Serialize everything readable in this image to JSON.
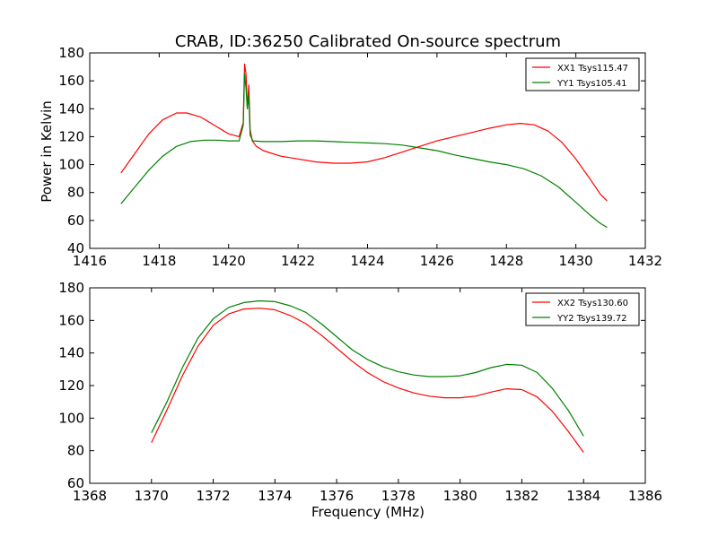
{
  "figure": {
    "title": "CRAB, ID:36250 Calibrated On-source spectrum",
    "ylabel": "Power in Kelvin",
    "xlabel": "Frequency (MHz)"
  },
  "chart_data": [
    {
      "type": "line",
      "title": "CRAB, ID:36250 Calibrated On-source spectrum",
      "xlabel": "",
      "ylabel": "Power in Kelvin",
      "xlim": [
        1416,
        1432
      ],
      "ylim": [
        40,
        180
      ],
      "xticks": [
        1416,
        1418,
        1420,
        1422,
        1424,
        1426,
        1428,
        1430,
        1432
      ],
      "yticks": [
        40,
        60,
        80,
        100,
        120,
        140,
        160,
        180
      ],
      "grid": false,
      "legend": "top-right",
      "series": [
        {
          "name": "XX1 Tsys115.47",
          "color": "#ff0000",
          "x": [
            1416.9,
            1417.3,
            1417.7,
            1418.1,
            1418.5,
            1418.8,
            1419.2,
            1419.6,
            1420.0,
            1420.3,
            1420.42,
            1420.46,
            1420.5,
            1420.54,
            1420.58,
            1420.62,
            1420.68,
            1420.8,
            1421.0,
            1421.5,
            1422.0,
            1422.5,
            1423.0,
            1423.5,
            1424.0,
            1424.5,
            1425.0,
            1425.5,
            1426.0,
            1426.5,
            1427.0,
            1427.5,
            1428.0,
            1428.4,
            1428.8,
            1429.2,
            1429.6,
            1430.0,
            1430.4,
            1430.7,
            1430.9
          ],
          "y": [
            94,
            108,
            122,
            132,
            137,
            137,
            134,
            128,
            122,
            120,
            130,
            172,
            165,
            140,
            157,
            125,
            117,
            113,
            110,
            106,
            104,
            102,
            101,
            101,
            102,
            105,
            109,
            113,
            117,
            120,
            123,
            126,
            128.5,
            129.5,
            128.5,
            124,
            116,
            104,
            90,
            79,
            74
          ]
        },
        {
          "name": "YY1 Tsys105.41",
          "color": "#008000",
          "x": [
            1416.9,
            1417.3,
            1417.7,
            1418.1,
            1418.5,
            1418.9,
            1419.3,
            1419.7,
            1420.0,
            1420.3,
            1420.42,
            1420.46,
            1420.5,
            1420.54,
            1420.58,
            1420.62,
            1420.7,
            1421.0,
            1421.5,
            1422.0,
            1422.5,
            1423.0,
            1423.5,
            1424.0,
            1424.5,
            1425.0,
            1425.5,
            1426.0,
            1426.5,
            1427.0,
            1427.5,
            1428.0,
            1428.5,
            1429.0,
            1429.5,
            1430.0,
            1430.4,
            1430.7,
            1430.9
          ],
          "y": [
            72,
            84,
            96,
            106,
            113,
            116.5,
            117.5,
            117.5,
            117,
            117,
            128,
            165,
            155,
            140,
            150,
            121,
            117,
            116.5,
            116.5,
            117,
            117,
            116.5,
            116,
            115.5,
            115,
            114,
            112,
            110,
            107,
            104.5,
            102,
            100,
            97,
            92,
            84,
            73,
            64,
            58,
            55
          ]
        }
      ]
    },
    {
      "type": "line",
      "title": "",
      "xlabel": "Frequency (MHz)",
      "ylabel": "",
      "xlim": [
        1368,
        1386
      ],
      "ylim": [
        60,
        180
      ],
      "xticks": [
        1368,
        1370,
        1372,
        1374,
        1376,
        1378,
        1380,
        1382,
        1384,
        1386
      ],
      "yticks": [
        60,
        80,
        100,
        120,
        140,
        160,
        180
      ],
      "grid": false,
      "legend": "top-right",
      "series": [
        {
          "name": "XX2 Tsys130.60",
          "color": "#ff0000",
          "x": [
            1370.0,
            1370.5,
            1371.0,
            1371.5,
            1372.0,
            1372.5,
            1373.0,
            1373.5,
            1374.0,
            1374.5,
            1375.0,
            1375.5,
            1376.0,
            1376.5,
            1377.0,
            1377.5,
            1378.0,
            1378.5,
            1379.0,
            1379.5,
            1380.0,
            1380.5,
            1381.0,
            1381.5,
            1382.0,
            1382.5,
            1383.0,
            1383.5,
            1384.0
          ],
          "y": [
            85,
            105,
            126,
            144,
            157,
            164,
            167,
            167.5,
            166.5,
            163,
            158,
            151,
            143,
            135,
            128,
            122.5,
            118.5,
            115.5,
            113.5,
            112.5,
            112.5,
            113.5,
            116,
            118,
            117.5,
            113,
            104,
            92,
            79
          ]
        },
        {
          "name": "YY2 Tsys139.72",
          "color": "#008000",
          "x": [
            1370.0,
            1370.5,
            1371.0,
            1371.5,
            1372.0,
            1372.5,
            1373.0,
            1373.5,
            1374.0,
            1374.5,
            1375.0,
            1375.5,
            1376.0,
            1376.5,
            1377.0,
            1377.5,
            1378.0,
            1378.5,
            1379.0,
            1379.5,
            1380.0,
            1380.5,
            1381.0,
            1381.5,
            1382.0,
            1382.5,
            1383.0,
            1383.5,
            1384.0
          ],
          "y": [
            91,
            110,
            131,
            149,
            161,
            168,
            171,
            172,
            171.5,
            169,
            165,
            158,
            150,
            142,
            136,
            131.5,
            128.5,
            126.5,
            125.5,
            125.5,
            126,
            128,
            131,
            133,
            132.5,
            128,
            118,
            105,
            89
          ]
        }
      ]
    }
  ]
}
